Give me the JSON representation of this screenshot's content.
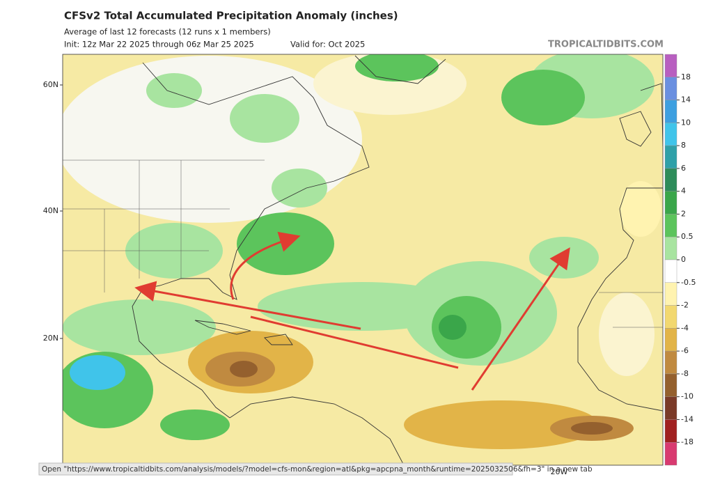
{
  "header": {
    "title": "CFSv2 Total Accumulated Precipitation Anomaly (inches)",
    "subtitle": "Average of last 12 forecasts (12 runs x 1 members)",
    "init": "Init: 12z Mar 22 2025 through 06z Mar 25 2025",
    "valid": "Valid for: Oct 2025",
    "watermark": "TROPICALTIDBITS.COM"
  },
  "map": {
    "lat_labels": [
      "60N",
      "40N",
      "20N"
    ],
    "lon_labels": [
      "20W"
    ]
  },
  "colorbar": {
    "levels": [
      18,
      14,
      10,
      8,
      6,
      4,
      2,
      0.5,
      0,
      -0.5,
      -2,
      -4,
      -6,
      -8,
      -10,
      -14,
      -18
    ],
    "colors": [
      "#b85fc0",
      "#6a8fe0",
      "#3d9fe0",
      "#40c4ea",
      "#2fa0a8",
      "#2e8c5a",
      "#3aa64a",
      "#5cc45c",
      "#a8e4a0",
      "#ffffff",
      "#fff3b0",
      "#f2d870",
      "#e2b448",
      "#c08a40",
      "#94602e",
      "#7a3a28",
      "#a02020",
      "#d83a70"
    ]
  },
  "status_bar": "Open \"https://www.tropicaltidbits.com/analysis/models/?model=cfs-mon&region=atl&pkg=apcpna_month&runtime=2025032506&fh=3\" in a new tab"
}
